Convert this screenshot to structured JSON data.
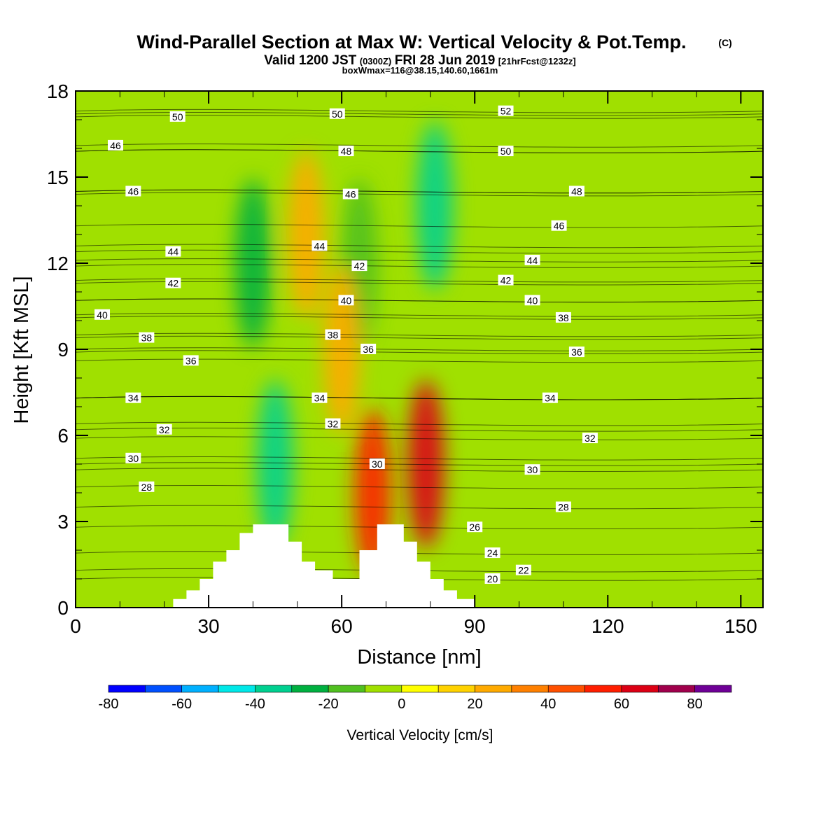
{
  "title": "Wind-Parallel Section at Max W: Vertical Velocity & Pot.Temp.",
  "title_mark": "(C)",
  "subtitle_a": "Valid 1200 JST",
  "subtitle_b": "(0300Z)",
  "subtitle_c": "FRI 28 Jun 2019",
  "subtitle_d": "[21hrFcst@1232z]",
  "subtitle2": "boxWmax=116@38.15,140.60,1661m",
  "chart_data": {
    "type": "heatmap",
    "xlabel": "Distance [nm]",
    "ylabel": "Height [Kft MSL]",
    "xlim": [
      0,
      155
    ],
    "ylim": [
      0,
      18
    ],
    "x_ticks": [
      "0",
      "30",
      "60",
      "90",
      "120",
      "150"
    ],
    "x_tick_values": [
      0,
      30,
      60,
      90,
      120,
      150
    ],
    "y_ticks": [
      "0",
      "3",
      "6",
      "9",
      "12",
      "15",
      "18"
    ],
    "y_tick_values": [
      0,
      3,
      6,
      9,
      12,
      15,
      18
    ],
    "colorbar": {
      "label": "Vertical Velocity [cm/s]",
      "tick_labels": [
        "-80",
        "-60",
        "-40",
        "-20",
        "0",
        "20",
        "40",
        "60",
        "80"
      ],
      "tick_values": [
        -80,
        -60,
        -40,
        -20,
        0,
        20,
        40,
        60,
        80
      ],
      "bounds": [
        -80,
        -70,
        -60,
        -50,
        -40,
        -30,
        -20,
        -10,
        0,
        10,
        20,
        30,
        40,
        50,
        60,
        70,
        80,
        90
      ],
      "colors": [
        "#0000ff",
        "#0050ff",
        "#00b0ff",
        "#00e8e8",
        "#00d090",
        "#00b040",
        "#50c020",
        "#a0e000",
        "#ffff00",
        "#ffd200",
        "#ffaa00",
        "#ff8000",
        "#ff5000",
        "#ff1e00",
        "#dc0014",
        "#a0004c",
        "#6e0096"
      ]
    },
    "background_color": "#a0e000",
    "vv_features": [
      {
        "x": 45,
        "y": 5,
        "value": -35
      },
      {
        "x": 40,
        "y": 12,
        "value": -25
      },
      {
        "x": 64,
        "y": 12,
        "value": -15
      },
      {
        "x": 81,
        "y": 14,
        "value": -35
      },
      {
        "x": 79,
        "y": 5,
        "value": 60
      },
      {
        "x": 67,
        "y": 4,
        "value": 50
      },
      {
        "x": 52,
        "y": 13,
        "value": 25
      },
      {
        "x": 60,
        "y": 9,
        "value": 20
      }
    ],
    "terrain": [
      [
        22,
        0
      ],
      [
        22,
        0.3
      ],
      [
        25,
        0.3
      ],
      [
        25,
        0.6
      ],
      [
        28,
        0.6
      ],
      [
        28,
        1
      ],
      [
        31,
        1
      ],
      [
        31,
        1.6
      ],
      [
        34,
        1.6
      ],
      [
        34,
        2
      ],
      [
        37,
        2
      ],
      [
        37,
        2.6
      ],
      [
        40,
        2.6
      ],
      [
        40,
        2.9
      ],
      [
        48,
        2.9
      ],
      [
        48,
        2.3
      ],
      [
        51,
        2.3
      ],
      [
        51,
        1.6
      ],
      [
        54,
        1.6
      ],
      [
        54,
        1.3
      ],
      [
        58,
        1.3
      ],
      [
        58,
        1
      ],
      [
        64,
        1
      ],
      [
        64,
        2
      ],
      [
        68,
        2
      ],
      [
        68,
        2.9
      ],
      [
        74,
        2.9
      ],
      [
        74,
        2.3
      ],
      [
        77,
        2.3
      ],
      [
        77,
        1.6
      ],
      [
        80,
        1.6
      ],
      [
        80,
        1
      ],
      [
        83,
        1
      ],
      [
        83,
        0.6
      ],
      [
        86,
        0.6
      ],
      [
        86,
        0.3
      ],
      [
        90,
        0.3
      ],
      [
        90,
        0
      ]
    ],
    "theta_labels": [
      {
        "x": 23,
        "y": 17.1,
        "value": "50"
      },
      {
        "x": 59,
        "y": 17.2,
        "value": "50"
      },
      {
        "x": 97,
        "y": 17.3,
        "value": "52"
      },
      {
        "x": 9,
        "y": 16.1,
        "value": "46"
      },
      {
        "x": 61,
        "y": 15.9,
        "value": "48"
      },
      {
        "x": 97,
        "y": 15.9,
        "value": "50"
      },
      {
        "x": 13,
        "y": 14.5,
        "value": "46"
      },
      {
        "x": 62,
        "y": 14.4,
        "value": "46"
      },
      {
        "x": 113,
        "y": 14.5,
        "value": "48"
      },
      {
        "x": 109,
        "y": 13.3,
        "value": "46"
      },
      {
        "x": 22,
        "y": 12.4,
        "value": "44"
      },
      {
        "x": 55,
        "y": 12.6,
        "value": "44"
      },
      {
        "x": 64,
        "y": 11.9,
        "value": "42"
      },
      {
        "x": 103,
        "y": 12.1,
        "value": "44"
      },
      {
        "x": 22,
        "y": 11.3,
        "value": "42"
      },
      {
        "x": 97,
        "y": 11.4,
        "value": "42"
      },
      {
        "x": 6,
        "y": 10.2,
        "value": "40"
      },
      {
        "x": 61,
        "y": 10.7,
        "value": "40"
      },
      {
        "x": 103,
        "y": 10.7,
        "value": "40"
      },
      {
        "x": 16,
        "y": 9.4,
        "value": "38"
      },
      {
        "x": 58,
        "y": 9.5,
        "value": "38"
      },
      {
        "x": 110,
        "y": 10.1,
        "value": "38"
      },
      {
        "x": 26,
        "y": 8.6,
        "value": "36"
      },
      {
        "x": 66,
        "y": 9.0,
        "value": "36"
      },
      {
        "x": 113,
        "y": 8.9,
        "value": "36"
      },
      {
        "x": 13,
        "y": 7.3,
        "value": "34"
      },
      {
        "x": 55,
        "y": 7.3,
        "value": "34"
      },
      {
        "x": 107,
        "y": 7.3,
        "value": "34"
      },
      {
        "x": 20,
        "y": 6.2,
        "value": "32"
      },
      {
        "x": 58,
        "y": 6.4,
        "value": "32"
      },
      {
        "x": 116,
        "y": 5.9,
        "value": "32"
      },
      {
        "x": 13,
        "y": 5.2,
        "value": "30"
      },
      {
        "x": 68,
        "y": 5.0,
        "value": "30"
      },
      {
        "x": 103,
        "y": 4.8,
        "value": "30"
      },
      {
        "x": 16,
        "y": 4.2,
        "value": "28"
      },
      {
        "x": 110,
        "y": 3.5,
        "value": "28"
      },
      {
        "x": 90,
        "y": 2.8,
        "value": "26"
      },
      {
        "x": 94,
        "y": 1.9,
        "value": "24"
      },
      {
        "x": 101,
        "y": 1.3,
        "value": "22"
      },
      {
        "x": 94,
        "y": 1.0,
        "value": "20"
      }
    ]
  }
}
